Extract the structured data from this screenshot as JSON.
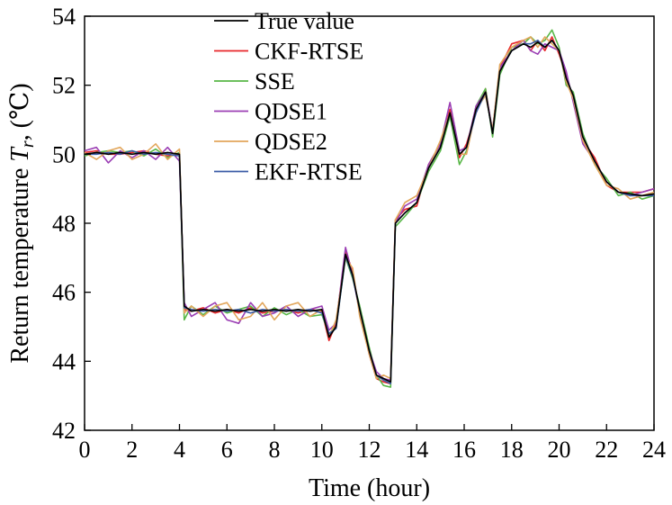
{
  "chart_data": {
    "type": "line",
    "xlabel": "Time (hour)",
    "ylabel": {
      "prefix": "Return temperature ",
      "symbol": "T",
      "subscript": "r",
      "suffix": ", (℃)"
    },
    "xlim": [
      0,
      24
    ],
    "ylim": [
      42,
      54
    ],
    "xticks": [
      0,
      2,
      4,
      6,
      8,
      10,
      12,
      14,
      16,
      18,
      20,
      22,
      24
    ],
    "yticks": [
      42,
      44,
      46,
      48,
      50,
      52,
      54
    ],
    "grid": false,
    "legend_position": "top-left",
    "x": [
      0,
      0.5,
      1,
      1.5,
      2,
      2.5,
      3,
      3.5,
      4,
      4.2,
      4.5,
      5,
      5.5,
      6,
      6.5,
      7,
      7.5,
      8,
      8.5,
      9,
      9.5,
      10,
      10.3,
      10.6,
      11,
      11.3,
      11.6,
      12,
      12.3,
      12.6,
      12.9,
      13.1,
      13.5,
      14,
      14.5,
      15,
      15.4,
      15.8,
      16.1,
      16.5,
      16.9,
      17.2,
      17.5,
      18,
      18.5,
      18.8,
      19.1,
      19.4,
      19.7,
      20,
      20.3,
      20.6,
      21,
      21.5,
      22,
      22.5,
      23,
      23.5,
      24
    ],
    "series": [
      {
        "name": "True value",
        "color": "#000000",
        "values": [
          50.0,
          50.05,
          50.0,
          50.05,
          50.0,
          50.05,
          50.0,
          50.05,
          50.0,
          45.6,
          45.45,
          45.5,
          45.45,
          45.5,
          45.45,
          45.5,
          45.45,
          45.5,
          45.45,
          45.5,
          45.45,
          45.5,
          44.7,
          45.0,
          47.1,
          46.5,
          45.5,
          44.3,
          43.6,
          43.5,
          43.4,
          48.0,
          48.3,
          48.6,
          49.6,
          50.2,
          51.2,
          50.0,
          50.2,
          51.3,
          51.8,
          50.6,
          52.4,
          53.0,
          53.2,
          53.1,
          53.25,
          53.1,
          53.3,
          53.0,
          52.2,
          51.7,
          50.5,
          49.8,
          49.2,
          48.9,
          48.85,
          48.8,
          48.85
        ]
      },
      {
        "name": "CKF-RTSE",
        "color": "#e8262a",
        "values": [
          50.05,
          50.1,
          50.0,
          50.0,
          50.05,
          50.1,
          50.0,
          49.95,
          50.0,
          45.5,
          45.45,
          45.55,
          45.4,
          45.5,
          45.4,
          45.55,
          45.4,
          45.45,
          45.5,
          45.4,
          45.5,
          45.45,
          44.6,
          45.1,
          47.2,
          46.6,
          45.4,
          44.2,
          43.5,
          43.4,
          43.35,
          48.1,
          48.4,
          48.5,
          49.7,
          50.3,
          51.3,
          49.9,
          50.3,
          51.2,
          51.9,
          50.6,
          52.5,
          53.2,
          53.3,
          53.0,
          53.3,
          53.0,
          53.4,
          52.9,
          52.3,
          51.6,
          50.4,
          49.9,
          49.1,
          48.9,
          48.9,
          48.9,
          49.0
        ]
      },
      {
        "name": "SSE",
        "color": "#58b747",
        "values": [
          49.95,
          50.05,
          50.1,
          50.05,
          50.1,
          49.95,
          50.15,
          49.9,
          50.05,
          45.2,
          45.6,
          45.35,
          45.6,
          45.4,
          45.5,
          45.6,
          45.3,
          45.55,
          45.35,
          45.5,
          45.3,
          45.35,
          44.8,
          45.0,
          47.0,
          46.4,
          45.6,
          44.4,
          43.6,
          43.3,
          43.25,
          47.9,
          48.2,
          48.6,
          49.5,
          50.1,
          51.1,
          49.7,
          50.1,
          51.4,
          51.9,
          50.5,
          52.3,
          53.1,
          53.2,
          53.4,
          53.2,
          53.3,
          53.6,
          53.1,
          52.0,
          51.8,
          50.6,
          49.7,
          49.3,
          48.8,
          48.9,
          48.7,
          48.8
        ]
      },
      {
        "name": "QDSE1",
        "color": "#9b3fb4",
        "values": [
          50.1,
          50.2,
          49.75,
          50.1,
          49.9,
          50.1,
          49.85,
          50.2,
          49.8,
          45.7,
          45.3,
          45.5,
          45.7,
          45.2,
          45.1,
          45.7,
          45.3,
          45.4,
          45.6,
          45.3,
          45.5,
          45.6,
          44.9,
          45.1,
          47.3,
          46.5,
          45.4,
          44.3,
          43.7,
          43.5,
          43.45,
          48.0,
          48.5,
          48.7,
          49.7,
          50.3,
          51.5,
          50.1,
          50.2,
          51.4,
          51.8,
          50.7,
          52.5,
          53.0,
          53.3,
          53.0,
          52.9,
          53.2,
          53.1,
          53.0,
          52.4,
          51.5,
          50.3,
          49.8,
          49.2,
          48.9,
          48.8,
          48.9,
          49.0
        ]
      },
      {
        "name": "QDSE2",
        "color": "#e2a65b",
        "values": [
          50.05,
          49.85,
          50.1,
          50.2,
          49.85,
          50.0,
          50.3,
          49.85,
          50.15,
          45.4,
          45.6,
          45.3,
          45.6,
          45.7,
          45.2,
          45.3,
          45.7,
          45.2,
          45.6,
          45.7,
          45.3,
          45.5,
          44.7,
          45.2,
          47.0,
          46.7,
          45.3,
          44.2,
          43.5,
          43.6,
          43.5,
          48.1,
          48.6,
          48.8,
          49.6,
          50.4,
          51.2,
          50.0,
          50.0,
          51.3,
          51.7,
          50.7,
          52.6,
          53.1,
          53.3,
          53.4,
          53.1,
          53.4,
          53.2,
          53.0,
          52.1,
          51.6,
          50.4,
          49.7,
          49.1,
          49.0,
          48.7,
          48.8,
          48.9
        ]
      },
      {
        "name": "EKF-RTSE",
        "color": "#3a5ba6",
        "values": [
          50.0,
          50.0,
          50.05,
          50.0,
          50.1,
          50.0,
          50.05,
          50.0,
          49.95,
          45.55,
          45.5,
          45.45,
          45.5,
          45.45,
          45.5,
          45.4,
          45.5,
          45.45,
          45.5,
          45.45,
          45.5,
          45.4,
          44.8,
          44.95,
          47.05,
          46.45,
          45.5,
          44.3,
          43.6,
          43.45,
          43.35,
          48.0,
          48.3,
          48.6,
          49.6,
          50.2,
          51.2,
          50.0,
          50.2,
          51.2,
          51.8,
          50.6,
          52.4,
          53.0,
          53.2,
          53.2,
          53.3,
          53.1,
          53.3,
          53.0,
          52.2,
          51.7,
          50.5,
          49.8,
          49.2,
          48.9,
          48.8,
          48.8,
          48.8
        ]
      }
    ]
  }
}
